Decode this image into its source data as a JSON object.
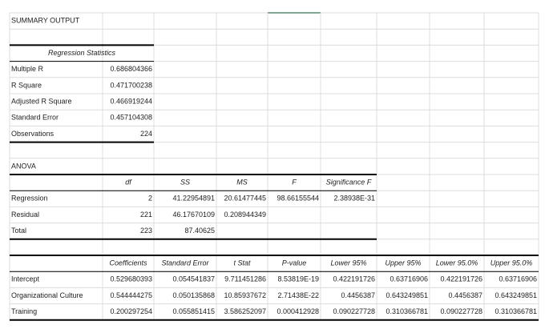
{
  "title": "SUMMARY OUTPUT",
  "regression_statistics": {
    "header": "Regression Statistics",
    "rows": [
      [
        "Multiple R",
        "0.686804366"
      ],
      [
        "R Square",
        "0.471700238"
      ],
      [
        "Adjusted R Square",
        "0.466919244"
      ],
      [
        "Standard Error",
        "0.457104308"
      ],
      [
        "Observations",
        "224"
      ]
    ]
  },
  "anova": {
    "title": "ANOVA",
    "columns": [
      "df",
      "SS",
      "MS",
      "F",
      "Significance F"
    ],
    "rows": [
      [
        "Regression",
        "2",
        "41.22954891",
        "20.61477445",
        "98.66155544",
        "2.38938E-31"
      ],
      [
        "Residual",
        "221",
        "46.17670109",
        "0.208944349"
      ],
      [
        "Total",
        "223",
        "87.40625"
      ]
    ]
  },
  "coefficients": {
    "columns": [
      "Coefficients",
      "Standard Error",
      "t Stat",
      "P-value",
      "Lower 95%",
      "Upper 95%",
      "Lower 95.0%",
      "Upper 95.0%"
    ],
    "rows": [
      [
        "Intercept",
        "0.529680393",
        "0.054541837",
        "9.711451286",
        "8.53819E-19",
        "0.422191726",
        "0.63716906",
        "0.422191726",
        "0.63716906"
      ],
      [
        "Organizational Culture",
        "0.544444275",
        "0.050135868",
        "10.85937672",
        "2.71438E-22",
        "0.4456387",
        "0.643249851",
        "0.4456387",
        "0.643249851"
      ],
      [
        "Training",
        "0.200297254",
        "0.055851415",
        "3.586252097",
        "0.000412928",
        "0.090227728",
        "0.310366781",
        "0.090227728",
        "0.310366781"
      ]
    ]
  }
}
